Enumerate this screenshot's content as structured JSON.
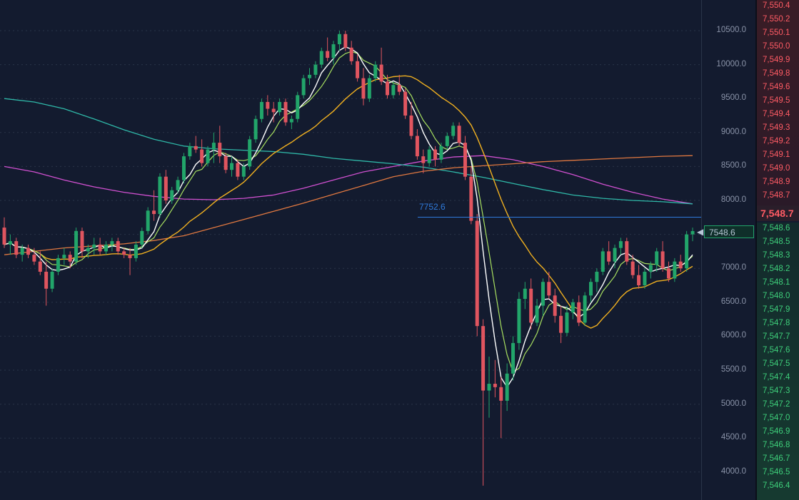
{
  "colors": {
    "background": "#131b2f",
    "up": "#22a56a",
    "down": "#e0555f",
    "ma_white": "#ffffff",
    "ma_green": "#a8e060",
    "ma_yellow": "#f0b020",
    "ma_teal": "#2fb8a8",
    "ma_magenta": "#d050d0",
    "ma_orange": "#e07840",
    "marker_line": "#2f7bdc",
    "depth_sell": "#ff5b64",
    "depth_buy": "#3ecf7a"
  },
  "price_axis": {
    "ticks": [
      "10500.0",
      "10000.0",
      "9500.0",
      "9000.0",
      "8500.0",
      "8000.0",
      "7500.0",
      "7000.0",
      "6500.0",
      "6000.0",
      "5500.0",
      "5000.0",
      "4500.0",
      "4000.0"
    ],
    "last_price": "7548.6"
  },
  "marker": {
    "label": "7752.6",
    "value": 7752.6
  },
  "depth": {
    "current": "7,548.7",
    "sell_levels": [
      "7,550.4",
      "7,550.2",
      "7,550.1",
      "7,550.0",
      "7,549.9",
      "7,549.8",
      "7,549.6",
      "7,549.5",
      "7,549.4",
      "7,549.3",
      "7,549.2",
      "7,549.1",
      "7,549.0",
      "7,548.9",
      "7,548.7"
    ],
    "buy_levels": [
      "7,548.6",
      "7,548.5",
      "7,548.3",
      "7,548.2",
      "7,548.1",
      "7,548.0",
      "7,547.9",
      "7,547.8",
      "7,547.7",
      "7,547.6",
      "7,547.5",
      "7,547.4",
      "7,547.3",
      "7,547.2",
      "7,547.0",
      "7,546.9",
      "7,546.8",
      "7,546.7",
      "7,546.5",
      "7,546.4"
    ]
  },
  "chart_data": {
    "type": "candlestick",
    "ylim": [
      3600,
      10900
    ],
    "grid": true,
    "candles": [
      [
        7600,
        7750,
        7300,
        7350
      ],
      [
        7350,
        7500,
        7200,
        7400
      ],
      [
        7400,
        7450,
        7150,
        7200
      ],
      [
        7200,
        7350,
        7100,
        7300
      ],
      [
        7300,
        7350,
        7150,
        7200
      ],
      [
        7200,
        7300,
        7050,
        7100
      ],
      [
        7100,
        7250,
        6900,
        6950
      ],
      [
        6950,
        7100,
        6450,
        6700
      ],
      [
        6700,
        7000,
        6650,
        6950
      ],
      [
        6950,
        7200,
        6900,
        7150
      ],
      [
        7150,
        7300,
        7050,
        7200
      ],
      [
        7200,
        7250,
        7000,
        7100
      ],
      [
        7100,
        7600,
        7050,
        7550
      ],
      [
        7550,
        7600,
        7150,
        7250
      ],
      [
        7250,
        7350,
        7150,
        7300
      ],
      [
        7300,
        7450,
        7200,
        7350
      ],
      [
        7350,
        7450,
        7200,
        7250
      ],
      [
        7250,
        7400,
        7200,
        7350
      ],
      [
        7350,
        7450,
        7250,
        7400
      ],
      [
        7400,
        7450,
        7200,
        7250
      ],
      [
        7250,
        7300,
        7150,
        7200
      ],
      [
        7200,
        7300,
        6900,
        7150
      ],
      [
        7150,
        7400,
        7100,
        7350
      ],
      [
        7350,
        7600,
        7300,
        7550
      ],
      [
        7550,
        7900,
        7500,
        7850
      ],
      [
        7850,
        8150,
        7700,
        7800
      ],
      [
        7800,
        8400,
        7750,
        8350
      ],
      [
        8350,
        8450,
        7950,
        8000
      ],
      [
        8000,
        8200,
        7950,
        8150
      ],
      [
        8150,
        8350,
        8100,
        8300
      ],
      [
        8300,
        8700,
        8250,
        8650
      ],
      [
        8650,
        8850,
        8600,
        8800
      ],
      [
        8800,
        8950,
        8700,
        8750
      ],
      [
        8750,
        8900,
        8500,
        8550
      ],
      [
        8550,
        8800,
        8500,
        8750
      ],
      [
        8750,
        9000,
        8550,
        8850
      ],
      [
        8850,
        9100,
        8550,
        8650
      ],
      [
        8650,
        8700,
        8400,
        8450
      ],
      [
        8450,
        8650,
        8350,
        8550
      ],
      [
        8550,
        8600,
        8300,
        8350
      ],
      [
        8350,
        8550,
        8300,
        8500
      ],
      [
        8500,
        8950,
        8450,
        8900
      ],
      [
        8900,
        9250,
        8850,
        9200
      ],
      [
        9200,
        9500,
        9150,
        9450
      ],
      [
        9450,
        9550,
        9250,
        9350
      ],
      [
        9350,
        9450,
        9150,
        9300
      ],
      [
        9300,
        9500,
        9250,
        9450
      ],
      [
        9450,
        9500,
        9100,
        9150
      ],
      [
        9150,
        9250,
        9050,
        9200
      ],
      [
        9200,
        9600,
        9150,
        9550
      ],
      [
        9550,
        9850,
        9500,
        9800
      ],
      [
        9800,
        9950,
        9700,
        9850
      ],
      [
        9850,
        10050,
        9800,
        10000
      ],
      [
        10000,
        10250,
        9950,
        10200
      ],
      [
        10200,
        10400,
        10050,
        10100
      ],
      [
        10100,
        10350,
        10000,
        10300
      ],
      [
        10300,
        10500,
        10200,
        10450
      ],
      [
        10450,
        10500,
        10200,
        10250
      ],
      [
        10250,
        10350,
        10000,
        10050
      ],
      [
        10050,
        10150,
        9750,
        9800
      ],
      [
        9800,
        9950,
        9400,
        9500
      ],
      [
        9500,
        9850,
        9450,
        9800
      ],
      [
        9800,
        10050,
        9750,
        10000
      ],
      [
        10000,
        10250,
        9700,
        9750
      ],
      [
        9750,
        9850,
        9500,
        9550
      ],
      [
        9550,
        9750,
        9500,
        9700
      ],
      [
        9700,
        9850,
        9550,
        9600
      ],
      [
        9600,
        9650,
        9200,
        9250
      ],
      [
        9250,
        9450,
        8900,
        8950
      ],
      [
        8950,
        9050,
        8600,
        8650
      ],
      [
        8650,
        8750,
        8400,
        8550
      ],
      [
        8550,
        8800,
        8500,
        8750
      ],
      [
        8750,
        8800,
        8500,
        8600
      ],
      [
        8600,
        8850,
        8550,
        8800
      ],
      [
        8800,
        9000,
        8750,
        8950
      ],
      [
        8950,
        9150,
        8900,
        9100
      ],
      [
        9100,
        9150,
        8800,
        8850
      ],
      [
        8850,
        8950,
        8300,
        8350
      ],
      [
        8350,
        8500,
        7650,
        7700
      ],
      [
        7700,
        7800,
        6000,
        6150
      ],
      [
        6150,
        6250,
        3800,
        5200
      ],
      [
        5200,
        5700,
        4800,
        5300
      ],
      [
        5300,
        5650,
        5100,
        5250
      ],
      [
        5250,
        5400,
        4500,
        5050
      ],
      [
        5050,
        5600,
        4900,
        5450
      ],
      [
        5450,
        6000,
        5350,
        5900
      ],
      [
        5900,
        6650,
        5800,
        6550
      ],
      [
        6550,
        6800,
        6400,
        6700
      ],
      [
        6700,
        6850,
        6100,
        6200
      ],
      [
        6200,
        6550,
        6150,
        6450
      ],
      [
        6450,
        6850,
        6300,
        6800
      ],
      [
        6800,
        6950,
        6550,
        6600
      ],
      [
        6600,
        6700,
        6200,
        6300
      ],
      [
        6300,
        6450,
        5900,
        6050
      ],
      [
        6050,
        6450,
        6000,
        6350
      ],
      [
        6350,
        6550,
        6250,
        6500
      ],
      [
        6500,
        6600,
        6150,
        6200
      ],
      [
        6200,
        6650,
        6150,
        6600
      ],
      [
        6600,
        6850,
        6500,
        6800
      ],
      [
        6800,
        7000,
        6650,
        6950
      ],
      [
        6950,
        7300,
        6900,
        7250
      ],
      [
        7250,
        7400,
        7050,
        7100
      ],
      [
        7100,
        7350,
        7000,
        7300
      ],
      [
        7300,
        7450,
        7200,
        7400
      ],
      [
        7400,
        7450,
        7050,
        7100
      ],
      [
        7100,
        7200,
        6850,
        6900
      ],
      [
        6900,
        7050,
        6700,
        6750
      ],
      [
        6750,
        7000,
        6700,
        6950
      ],
      [
        6950,
        7100,
        6850,
        7050
      ],
      [
        7050,
        7300,
        6950,
        7250
      ],
      [
        7250,
        7400,
        6950,
        7000
      ],
      [
        7000,
        7100,
        6800,
        6850
      ],
      [
        6850,
        7150,
        6800,
        7100
      ],
      [
        7100,
        7200,
        6950,
        7000
      ],
      [
        7000,
        7550,
        6950,
        7500
      ],
      [
        7500,
        7600,
        7400,
        7548.6
      ]
    ],
    "moving_averages": [
      {
        "color": "#d050d0",
        "values": [
          8500,
          8420,
          8300,
          8200,
          8120,
          8060,
          8020,
          8010,
          8030,
          8080,
          8180,
          8300,
          8420,
          8500,
          8580,
          8640,
          8660,
          8600,
          8500,
          8380,
          8240,
          8120,
          8020,
          7950
        ]
      },
      {
        "color": "#2fb8a8",
        "values": [
          9500,
          9450,
          9350,
          9200,
          9040,
          8900,
          8800,
          8760,
          8740,
          8720,
          8680,
          8620,
          8580,
          8540,
          8490,
          8420,
          8340,
          8250,
          8160,
          8080,
          8030,
          8000,
          7980,
          7950
        ]
      },
      {
        "color": "#e07840",
        "values": [
          7200,
          7250,
          7300,
          7330,
          7360,
          7410,
          7480,
          7600,
          7720,
          7840,
          7960,
          8090,
          8220,
          8350,
          8430,
          8480,
          8510,
          8540,
          8570,
          8590,
          8610,
          8630,
          8650,
          8660
        ]
      }
    ]
  }
}
